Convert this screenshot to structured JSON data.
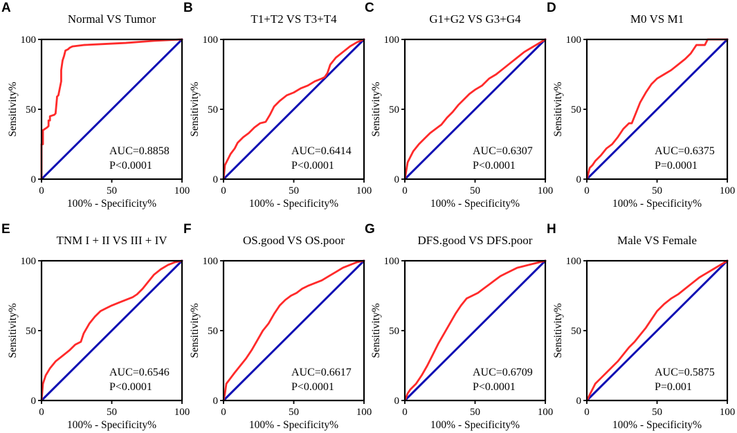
{
  "figure": {
    "background": "#ffffff"
  },
  "chart_data": [
    {
      "panel": "A",
      "type": "line",
      "title": "Normal VS Tumor",
      "xlabel": "100% - Specificity%",
      "ylabel": "Sensitivity%",
      "xlim": [
        0,
        100
      ],
      "ylim": [
        0,
        100
      ],
      "xticks": [
        "0",
        "50",
        "100"
      ],
      "yticks": [
        "0",
        "50",
        "100"
      ],
      "auc": "AUC=0.8858",
      "p": "P<0.0001",
      "series": [
        {
          "name": "ROC",
          "color": "#ff2a2a",
          "x": [
            0,
            0,
            1,
            1,
            4,
            5,
            5,
            6,
            6,
            9,
            10,
            10,
            11,
            11,
            12,
            14,
            14,
            15,
            16,
            17,
            19,
            20,
            22,
            26,
            30,
            40,
            60,
            80,
            100
          ],
          "y": [
            0,
            25,
            25,
            35,
            37,
            38,
            42,
            42,
            45,
            46,
            47,
            47,
            58,
            59,
            60,
            70,
            78,
            85,
            88,
            92,
            93,
            94,
            95,
            95.5,
            96,
            96.5,
            97.5,
            99,
            100
          ]
        },
        {
          "name": "Reference",
          "color": "#1010b4",
          "x": [
            0,
            100
          ],
          "y": [
            0,
            100
          ]
        }
      ]
    },
    {
      "panel": "B",
      "type": "line",
      "title": "T1+T2 VS T3+T4",
      "xlabel": "100% - Specificity%",
      "ylabel": "Sensitivity%",
      "xlim": [
        0,
        100
      ],
      "ylim": [
        0,
        100
      ],
      "xticks": [
        "0",
        "50",
        "100"
      ],
      "yticks": [
        "0",
        "50",
        "100"
      ],
      "auc": "AUC=0.6414",
      "p": "P<0.0001",
      "series": [
        {
          "name": "ROC",
          "color": "#ff2a2a",
          "x": [
            0,
            1,
            3,
            5,
            8,
            10,
            14,
            18,
            22,
            26,
            30,
            33,
            36,
            40,
            45,
            50,
            55,
            60,
            65,
            70,
            72,
            74,
            76,
            80,
            85,
            90,
            95,
            100
          ],
          "y": [
            0,
            10,
            14,
            18,
            22,
            26,
            30,
            33,
            37,
            40,
            41,
            46,
            52,
            56,
            60,
            62,
            65,
            67,
            70,
            72,
            73,
            76,
            82,
            87,
            91,
            95,
            98,
            100
          ]
        },
        {
          "name": "Reference",
          "color": "#1010b4",
          "x": [
            0,
            100
          ],
          "y": [
            0,
            100
          ]
        }
      ]
    },
    {
      "panel": "C",
      "type": "line",
      "title": "G1+G2 VS G3+G4",
      "xlabel": "100% - Specificity%",
      "ylabel": "Sensitivity%",
      "xlim": [
        0,
        100
      ],
      "ylim": [
        0,
        100
      ],
      "xticks": [
        "0",
        "50",
        "100"
      ],
      "yticks": [
        "0",
        "50",
        "100"
      ],
      "auc": "AUC=0.6307",
      "p": "P<0.0001",
      "series": [
        {
          "name": "ROC",
          "color": "#ff2a2a",
          "x": [
            0,
            1,
            2,
            4,
            6,
            10,
            14,
            18,
            22,
            26,
            30,
            34,
            38,
            42,
            46,
            50,
            55,
            60,
            65,
            70,
            75,
            80,
            85,
            90,
            95,
            100
          ],
          "y": [
            0,
            6,
            12,
            16,
            20,
            25,
            29,
            33,
            36,
            39,
            44,
            48,
            53,
            57,
            61,
            64,
            67,
            72,
            75,
            79,
            83,
            87,
            91,
            94,
            97,
            100
          ]
        },
        {
          "name": "Reference",
          "color": "#1010b4",
          "x": [
            0,
            100
          ],
          "y": [
            0,
            100
          ]
        }
      ]
    },
    {
      "panel": "D",
      "type": "line",
      "title": "M0 VS M1",
      "xlabel": "100% - Specificity%",
      "ylabel": "Sensitivity%",
      "xlim": [
        0,
        100
      ],
      "ylim": [
        0,
        100
      ],
      "xticks": [
        "0",
        "50",
        "100"
      ],
      "yticks": [
        "0",
        "50",
        "100"
      ],
      "auc": "AUC=0.6375",
      "p": "P=0.0001",
      "series": [
        {
          "name": "ROC",
          "color": "#ff2a2a",
          "x": [
            0,
            2,
            4,
            6,
            10,
            14,
            18,
            22,
            26,
            30,
            32,
            38,
            42,
            46,
            50,
            55,
            60,
            65,
            70,
            74,
            76,
            78,
            84,
            86,
            100
          ],
          "y": [
            0,
            8,
            10,
            13,
            17,
            22,
            25,
            30,
            36,
            40,
            40,
            55,
            62,
            68,
            72,
            75,
            78,
            82,
            86,
            90,
            93,
            96,
            96,
            100,
            100
          ]
        },
        {
          "name": "Reference",
          "color": "#1010b4",
          "x": [
            0,
            100
          ],
          "y": [
            0,
            100
          ]
        }
      ]
    },
    {
      "panel": "E",
      "type": "line",
      "title": "TNM  I + II VS III + IV",
      "xlabel": "100% - Specificity%",
      "ylabel": "Sensitivity%",
      "xlim": [
        0,
        100
      ],
      "ylim": [
        0,
        100
      ],
      "xticks": [
        "0",
        "50",
        "100"
      ],
      "yticks": [
        "0",
        "50",
        "100"
      ],
      "auc": "AUC=0.6546",
      "p": "P<0.0001",
      "series": [
        {
          "name": "ROC",
          "color": "#ff2a2a",
          "x": [
            0,
            1,
            3,
            6,
            10,
            15,
            20,
            24,
            28,
            30,
            34,
            38,
            42,
            46,
            50,
            55,
            60,
            65,
            68,
            72,
            76,
            80,
            85,
            90,
            95,
            100
          ],
          "y": [
            0,
            12,
            18,
            23,
            28,
            32,
            36,
            40,
            42,
            48,
            55,
            60,
            64,
            66,
            68,
            70,
            72,
            74,
            76,
            80,
            85,
            90,
            94,
            97,
            99,
            100
          ]
        },
        {
          "name": "Reference",
          "color": "#1010b4",
          "x": [
            0,
            100
          ],
          "y": [
            0,
            100
          ]
        }
      ]
    },
    {
      "panel": "F",
      "type": "line",
      "title": "OS.good VS OS.poor",
      "xlabel": "100% - Specificity%",
      "ylabel": "Sensitivity%",
      "xlim": [
        0,
        100
      ],
      "ylim": [
        0,
        100
      ],
      "xticks": [
        "0",
        "50",
        "100"
      ],
      "yticks": [
        "0",
        "50",
        "100"
      ],
      "auc": "AUC=0.6617",
      "p": "P<0.0001",
      "series": [
        {
          "name": "ROC",
          "color": "#ff2a2a",
          "x": [
            0,
            1,
            2,
            5,
            8,
            12,
            16,
            20,
            24,
            28,
            32,
            36,
            40,
            44,
            48,
            52,
            56,
            60,
            65,
            70,
            75,
            80,
            85,
            90,
            95,
            100
          ],
          "y": [
            0,
            5,
            12,
            16,
            20,
            25,
            30,
            36,
            43,
            50,
            55,
            62,
            68,
            72,
            75,
            77,
            80,
            82,
            84,
            86,
            89,
            92,
            95,
            97,
            99,
            100
          ]
        },
        {
          "name": "Reference",
          "color": "#1010b4",
          "x": [
            0,
            100
          ],
          "y": [
            0,
            100
          ]
        }
      ]
    },
    {
      "panel": "G",
      "type": "line",
      "title": "DFS.good VS DFS.poor",
      "xlabel": "100% - Specificity%",
      "ylabel": "Sensitivity%",
      "xlim": [
        0,
        100
      ],
      "ylim": [
        0,
        100
      ],
      "xticks": [
        "0",
        "50",
        "100"
      ],
      "yticks": [
        "0",
        "50",
        "100"
      ],
      "auc": "AUC=0.6709",
      "p": "P<0.0001",
      "series": [
        {
          "name": "ROC",
          "color": "#ff2a2a",
          "x": [
            0,
            2,
            4,
            8,
            12,
            16,
            20,
            24,
            28,
            32,
            36,
            40,
            44,
            48,
            52,
            56,
            60,
            64,
            68,
            72,
            76,
            80,
            84,
            88,
            92,
            96,
            100
          ],
          "y": [
            0,
            5,
            8,
            12,
            18,
            25,
            33,
            41,
            48,
            55,
            62,
            68,
            73,
            75,
            77,
            80,
            83,
            86,
            89,
            91,
            93,
            95,
            96,
            97,
            98,
            99,
            100
          ]
        },
        {
          "name": "Reference",
          "color": "#1010b4",
          "x": [
            0,
            100
          ],
          "y": [
            0,
            100
          ]
        }
      ]
    },
    {
      "panel": "H",
      "type": "line",
      "title": "Male VS Female",
      "xlabel": "100% - Specificity%",
      "ylabel": "Sensitivity%",
      "xlim": [
        0,
        100
      ],
      "ylim": [
        0,
        100
      ],
      "xticks": [
        "0",
        "50",
        "100"
      ],
      "yticks": [
        "0",
        "50",
        "100"
      ],
      "auc": "AUC=0.5875",
      "p": "P=0.001",
      "series": [
        {
          "name": "ROC",
          "color": "#ff2a2a",
          "x": [
            0,
            2,
            4,
            6,
            10,
            14,
            18,
            22,
            26,
            30,
            34,
            38,
            42,
            46,
            50,
            55,
            60,
            65,
            70,
            75,
            80,
            85,
            90,
            95,
            100
          ],
          "y": [
            0,
            4,
            8,
            12,
            16,
            20,
            24,
            28,
            33,
            38,
            42,
            47,
            52,
            58,
            64,
            69,
            73,
            76,
            80,
            84,
            88,
            91,
            94,
            97,
            100
          ]
        },
        {
          "name": "Reference",
          "color": "#1010b4",
          "x": [
            0,
            100
          ],
          "y": [
            0,
            100
          ]
        }
      ]
    }
  ]
}
